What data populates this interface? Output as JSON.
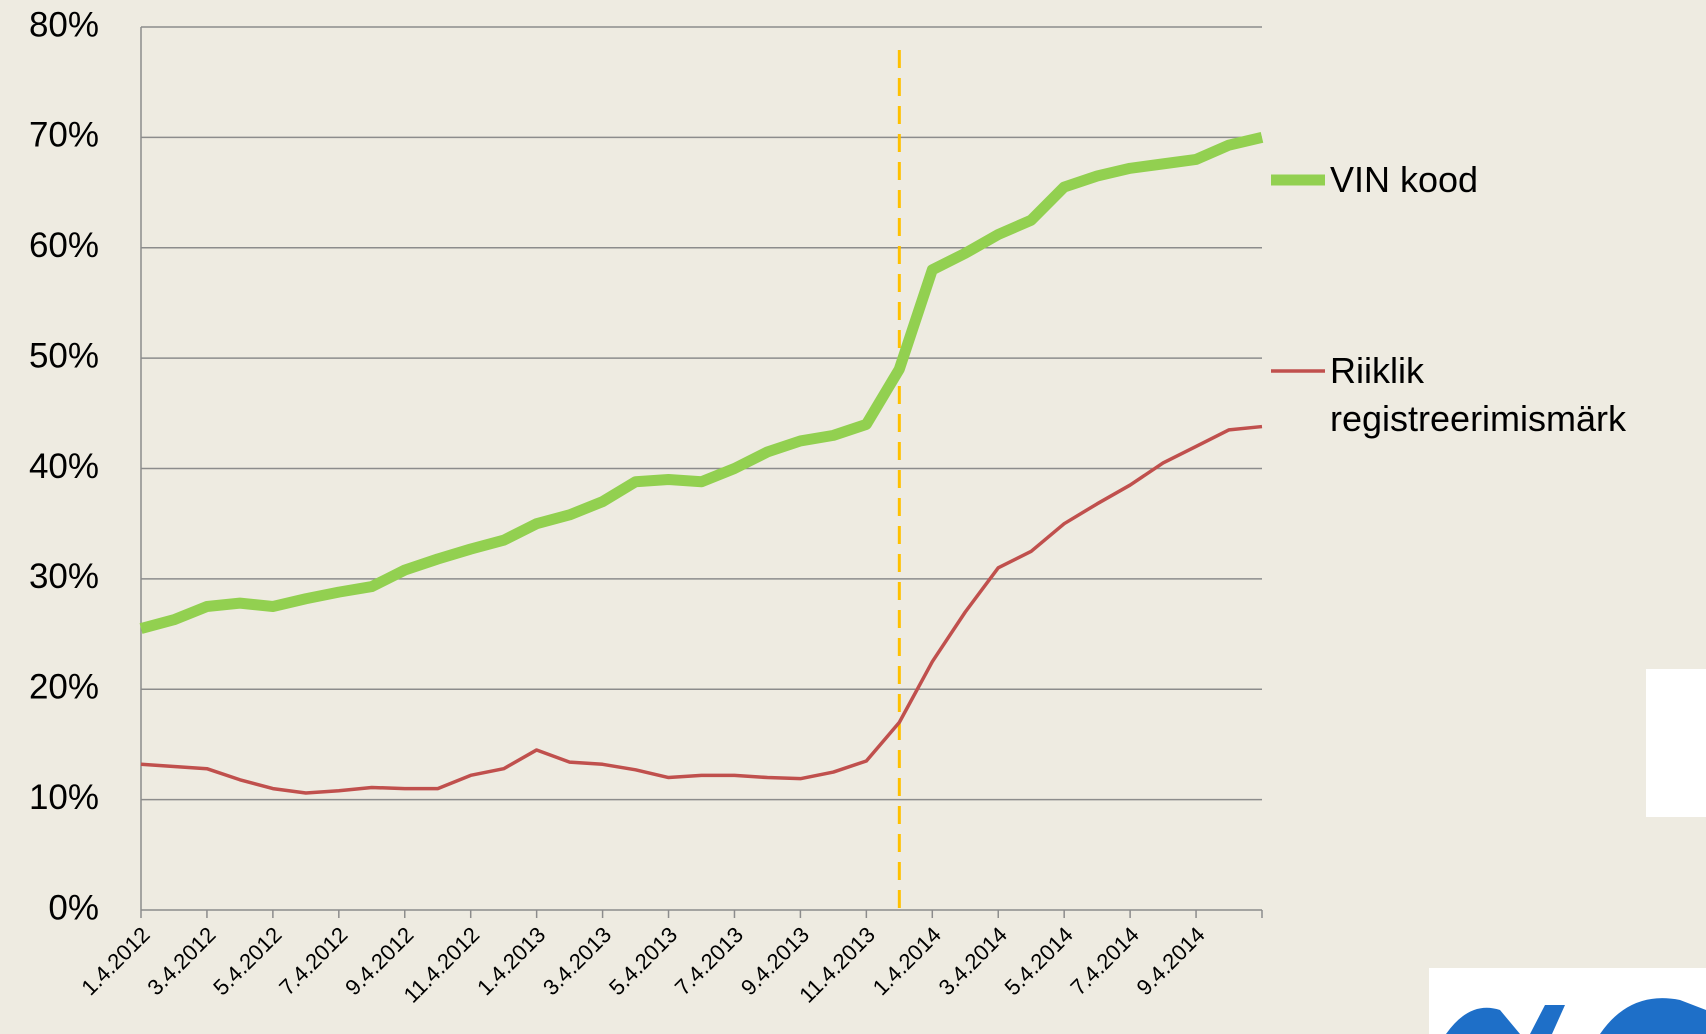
{
  "chart_data": {
    "type": "line",
    "categories": [
      "1.4.2012",
      null,
      "3.4.2012",
      null,
      "5.4.2012",
      null,
      "7.4.2012",
      null,
      "9.4.2012",
      null,
      "11.4.2012",
      null,
      "1.4.2013",
      null,
      "3.4.2013",
      null,
      "5.4.2013",
      null,
      "7.4.2013",
      null,
      "9.4.2013",
      null,
      "11.4.2013",
      null,
      "1.4.2014",
      null,
      "3.4.2014",
      null,
      "5.4.2014",
      null,
      "7.4.2014",
      null,
      "9.4.2014",
      null,
      null
    ],
    "series": [
      {
        "name": "VIN kood",
        "color": "#92d050",
        "values": [
          25.5,
          26.3,
          27.5,
          27.8,
          27.5,
          28.2,
          28.8,
          29.3,
          30.8,
          31.8,
          32.7,
          33.5,
          35,
          35.8,
          37,
          38.8,
          39,
          38.8,
          40,
          41.5,
          42.5,
          43,
          44,
          49,
          58,
          59.5,
          61.2,
          62.5,
          65.5,
          66.5,
          67.2,
          67.6,
          68,
          69.3,
          70
        ]
      },
      {
        "name": "Riiklik registreerimismärk",
        "color": "#c0504d",
        "values": [
          13.2,
          13,
          12.8,
          11.8,
          11,
          10.6,
          10.8,
          11.1,
          11,
          11,
          12.2,
          12.8,
          14.5,
          13.4,
          13.2,
          12.7,
          12,
          12.2,
          12.2,
          12,
          11.9,
          12.5,
          13.5,
          17,
          22.5,
          27,
          31,
          32.5,
          35,
          36.8,
          38.5,
          40.5,
          42,
          43.5,
          43.8
        ]
      }
    ],
    "ylim": [
      0,
      80
    ],
    "yticks": [
      {
        "value": 0,
        "label": "0%"
      },
      {
        "value": 10,
        "label": "10%"
      },
      {
        "value": 20,
        "label": "20%"
      },
      {
        "value": 30,
        "label": "30%"
      },
      {
        "value": 40,
        "label": "40%"
      },
      {
        "value": 50,
        "label": "50%"
      },
      {
        "value": 60,
        "label": "60%"
      },
      {
        "value": 70,
        "label": "70%"
      },
      {
        "value": 80,
        "label": "80%"
      }
    ],
    "grid": true,
    "legend": "right",
    "reference_line": {
      "index": 23,
      "color": "#ffc000"
    }
  }
}
